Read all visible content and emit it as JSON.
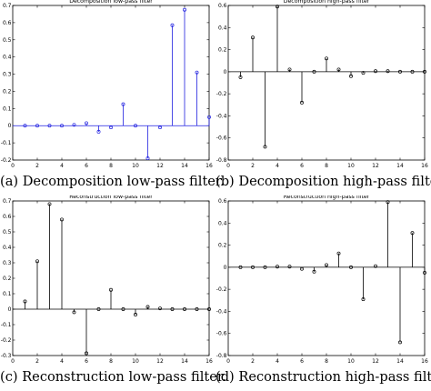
{
  "chart_data": [
    {
      "type": "stem",
      "title": "Decomposition low-pass filter",
      "caption": "(a) Decomposition low-pass filter.",
      "color": "#1f1fe0",
      "x": [
        1,
        2,
        3,
        4,
        5,
        6,
        7,
        8,
        9,
        10,
        11,
        12,
        13,
        14,
        15,
        16
      ],
      "values": [
        0.0,
        0.0,
        0.0,
        0.0,
        0.005,
        0.015,
        -0.035,
        -0.01,
        0.125,
        0.0,
        -0.19,
        -0.01,
        0.585,
        0.675,
        0.31,
        0.05
      ],
      "xlim": [
        0,
        16
      ],
      "ylim": [
        -0.2,
        0.7
      ],
      "xticks": [
        0,
        2,
        4,
        6,
        8,
        10,
        12,
        14,
        16
      ],
      "yticks": [
        -0.2,
        -0.1,
        0,
        0.1,
        0.2,
        0.3,
        0.4,
        0.5,
        0.6,
        0.7
      ],
      "ytick_labels": [
        "-0.2",
        "-0.1",
        "0",
        "0.1",
        "0.2",
        "0.3",
        "0.4",
        "0.5",
        "0.6",
        "0.7"
      ]
    },
    {
      "type": "stem",
      "title": "Decomposition high-pass filter",
      "caption": "(b) Decomposition high-pass filter.",
      "color": "#000000",
      "x": [
        1,
        2,
        3,
        4,
        5,
        6,
        7,
        8,
        9,
        10,
        11,
        12,
        13,
        14,
        15,
        16
      ],
      "values": [
        -0.05,
        0.31,
        -0.68,
        0.59,
        0.02,
        -0.28,
        0.0,
        0.12,
        0.02,
        -0.04,
        -0.01,
        0.005,
        0.005,
        0.0,
        0.0,
        0.0
      ],
      "xlim": [
        0,
        16
      ],
      "ylim": [
        -0.8,
        0.6
      ],
      "xticks": [
        0,
        2,
        4,
        6,
        8,
        10,
        12,
        14,
        16
      ],
      "yticks": [
        -0.8,
        -0.6,
        -0.4,
        -0.2,
        0,
        0.2,
        0.4,
        0.6
      ],
      "ytick_labels": [
        "-0.8",
        "-0.6",
        "-0.4",
        "-0.2",
        "0",
        "0.2",
        "0.4",
        "0.6"
      ]
    },
    {
      "type": "stem",
      "title": "Reconstruction low-pass filter",
      "caption": "(c) Reconstruction low-pass filter.",
      "color": "#000000",
      "x": [
        1,
        2,
        3,
        4,
        5,
        6,
        7,
        8,
        9,
        10,
        11,
        12,
        13,
        14,
        15,
        16
      ],
      "values": [
        0.05,
        0.31,
        0.68,
        0.58,
        -0.02,
        -0.285,
        0.0,
        0.125,
        0.0,
        -0.035,
        0.015,
        0.005,
        0.0,
        0.0,
        0.0,
        0.0
      ],
      "xlim": [
        0,
        16
      ],
      "ylim": [
        -0.3,
        0.7
      ],
      "xticks": [
        0,
        2,
        4,
        6,
        8,
        10,
        12,
        14,
        16
      ],
      "yticks": [
        -0.3,
        -0.2,
        -0.1,
        0,
        0.1,
        0.2,
        0.3,
        0.4,
        0.5,
        0.6,
        0.7
      ],
      "ytick_labels": [
        "-0.3",
        "-0.2",
        "-0.1",
        "0",
        "0.1",
        "0.2",
        "0.3",
        "0.4",
        "0.5",
        "0.6",
        "0.7"
      ]
    },
    {
      "type": "stem",
      "title": "Reconstruction high-pass filter",
      "caption": "(d) Reconstruction high-pass filter.",
      "color": "#000000",
      "x": [
        1,
        2,
        3,
        4,
        5,
        6,
        7,
        8,
        9,
        10,
        11,
        12,
        13,
        14,
        15,
        16
      ],
      "values": [
        0.0,
        0.0,
        0.0,
        0.005,
        0.005,
        -0.015,
        -0.04,
        0.02,
        0.125,
        0.0,
        -0.29,
        0.01,
        0.59,
        -0.68,
        0.31,
        -0.05
      ],
      "xlim": [
        0,
        16
      ],
      "ylim": [
        -0.8,
        0.6
      ],
      "xticks": [
        0,
        2,
        4,
        6,
        8,
        10,
        12,
        14,
        16
      ],
      "yticks": [
        -0.8,
        -0.6,
        -0.4,
        -0.2,
        0,
        0.2,
        0.4,
        0.6
      ],
      "ytick_labels": [
        "-0.8",
        "-0.6",
        "-0.4",
        "-0.2",
        "0",
        "0.2",
        "0.4",
        "0.6"
      ]
    }
  ]
}
